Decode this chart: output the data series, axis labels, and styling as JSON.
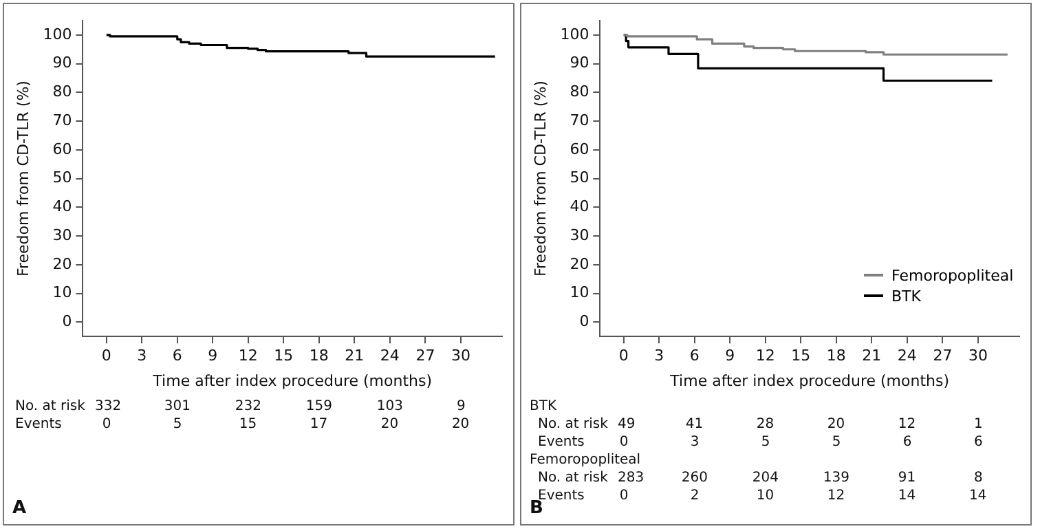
{
  "chart_data": [
    {
      "type": "step",
      "xlabel": "Time after index procedure (months)",
      "ylabel": "Freedom from CD-TLR (%)",
      "xlim": [
        -2,
        33.5
      ],
      "ylim": [
        -5,
        105
      ],
      "xticks": [
        0,
        3,
        6,
        9,
        12,
        15,
        18,
        21,
        24,
        27,
        30
      ],
      "yticks": [
        0,
        10,
        20,
        30,
        40,
        50,
        60,
        70,
        80,
        90,
        100
      ],
      "grid": false,
      "legend": false,
      "marker": "none",
      "series": [
        {
          "color": "#000000",
          "x": [
            0,
            0.3,
            6,
            6.3,
            7,
            8,
            10.2,
            12,
            12.8,
            13.5,
            20.5,
            22,
            32.9
          ],
          "values": [
            100,
            99.5,
            98.5,
            97.5,
            97,
            96.5,
            95.5,
            95.2,
            94.8,
            94.3,
            93.7,
            92.5,
            92.5
          ]
        }
      ],
      "annotations": [
        "No. at risk\t332\t301\t232\t159\t103\t9",
        "Events\t0\t5\t15\t17\t20\t20",
        "A"
      ]
    },
    {
      "type": "step",
      "xlabel": "Time after index procedure (months)",
      "ylabel": "Freedom from CD-TLR (%)",
      "xlim": [
        -2,
        33.5
      ],
      "ylim": [
        -5,
        105
      ],
      "xticks": [
        0,
        3,
        6,
        9,
        12,
        15,
        18,
        21,
        24,
        27,
        30
      ],
      "yticks": [
        0,
        10,
        20,
        30,
        40,
        50,
        60,
        70,
        80,
        90,
        100
      ],
      "grid": false,
      "legend": "bottom right",
      "marker": "none",
      "series": [
        {
          "name": "Femoropopliteal",
          "color": "#808080",
          "x": [
            0,
            0.3,
            6.2,
            7.5,
            10.2,
            11,
            13.5,
            14.5,
            20.5,
            22,
            32.5
          ],
          "values": [
            100,
            99.5,
            98.5,
            97,
            96,
            95.5,
            95,
            94.4,
            94,
            93.2,
            93.2
          ]
        },
        {
          "name": "BTK",
          "color": "#000000",
          "x": [
            0,
            0.2,
            0.4,
            3.8,
            6.3,
            22,
            31.2
          ],
          "values": [
            100,
            97.9,
            95.7,
            93.4,
            88.4,
            84.1,
            84.1
          ]
        }
      ],
      "annotations": [
        "BTK",
        "No. at risk\t49\t41\t28\t20\t12\t1",
        "Events\t0\t3\t5\t5\t6\t6",
        "Femoropopliteal",
        "No. at risk\t283\t260\t204\t139\t91\t8",
        "Events\t0\t2\t10\t12\t14\t14",
        "B"
      ]
    }
  ]
}
